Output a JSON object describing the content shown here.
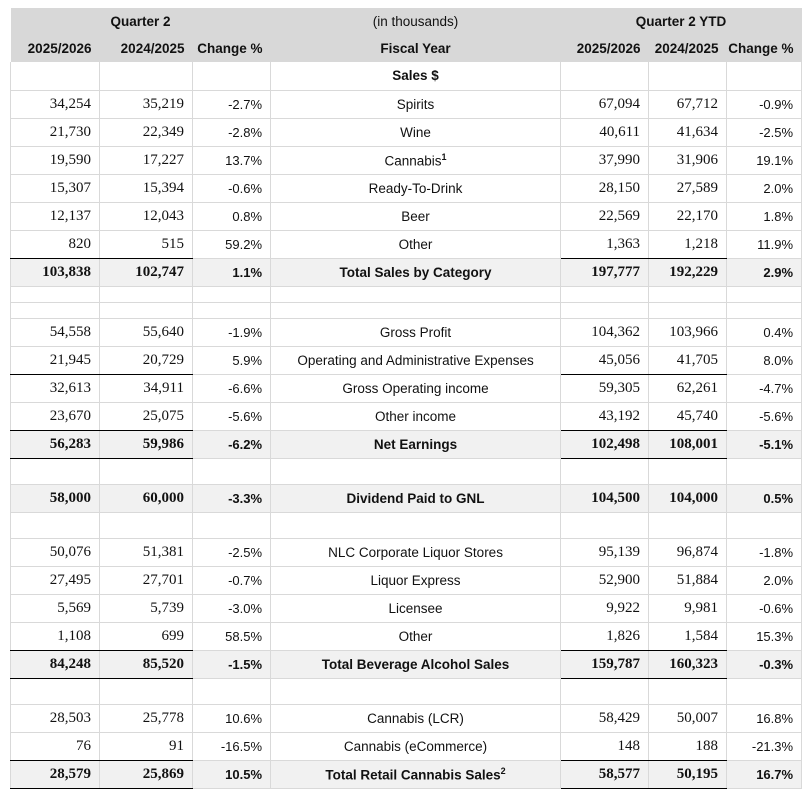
{
  "colors": {
    "header_bg": "#d8d8d8",
    "total_bg": "#f1f1f1",
    "grid": "#d9d9d9",
    "rule": "#000000"
  },
  "table": {
    "group_headers": {
      "q2": "Quarter 2",
      "center": "(in thousands)",
      "ytd": "Quarter 2 YTD"
    },
    "col_headers": [
      "2025/2026",
      "2024/2025",
      "Change %",
      "Fiscal Year",
      "2025/2026",
      "2024/2025",
      "Change %"
    ],
    "rows": [
      {
        "type": "section",
        "label": "Sales $"
      },
      {
        "type": "data",
        "label": "Spirits",
        "cells": [
          "34,254",
          "35,219",
          "-2.7%",
          "67,094",
          "67,712",
          "-0.9%"
        ]
      },
      {
        "type": "data",
        "label": "Wine",
        "cells": [
          "21,730",
          "22,349",
          "-2.8%",
          "40,611",
          "41,634",
          "-2.5%"
        ]
      },
      {
        "type": "data",
        "label": "Cannabis",
        "sup": "1",
        "cells": [
          "19,590",
          "17,227",
          "13.7%",
          "37,990",
          "31,906",
          "19.1%"
        ]
      },
      {
        "type": "data",
        "label": "Ready-To-Drink",
        "cells": [
          "15,307",
          "15,394",
          "-0.6%",
          "28,150",
          "27,589",
          "2.0%"
        ]
      },
      {
        "type": "data",
        "label": "Beer",
        "cells": [
          "12,137",
          "12,043",
          "0.8%",
          "22,569",
          "22,170",
          "1.8%"
        ]
      },
      {
        "type": "data",
        "label": "Other",
        "ul": true,
        "cells": [
          "820",
          "515",
          "59.2%",
          "1,363",
          "1,218",
          "11.9%"
        ]
      },
      {
        "type": "total",
        "label": "Total Sales by Category",
        "cells": [
          "103,838",
          "102,747",
          "1.1%",
          "197,777",
          "192,229",
          "2.9%"
        ]
      },
      {
        "type": "blank",
        "small": true
      },
      {
        "type": "blank",
        "small": true
      },
      {
        "type": "data",
        "label": "Gross Profit",
        "cells": [
          "54,558",
          "55,640",
          "-1.9%",
          "104,362",
          "103,966",
          "0.4%"
        ]
      },
      {
        "type": "data",
        "label": "Operating and Administrative Expenses",
        "ul": true,
        "cells": [
          "21,945",
          "20,729",
          "5.9%",
          "45,056",
          "41,705",
          "8.0%"
        ]
      },
      {
        "type": "data",
        "label": "Gross Operating income",
        "cells": [
          "32,613",
          "34,911",
          "-6.6%",
          "59,305",
          "62,261",
          "-4.7%"
        ]
      },
      {
        "type": "data",
        "label": "Other income",
        "ul": true,
        "cells": [
          "23,670",
          "25,075",
          "-5.6%",
          "43,192",
          "45,740",
          "-5.6%"
        ]
      },
      {
        "type": "total",
        "label": "Net Earnings",
        "ul_bottom": true,
        "cells": [
          "56,283",
          "59,986",
          "-6.2%",
          "102,498",
          "108,001",
          "-5.1%"
        ]
      },
      {
        "type": "blank"
      },
      {
        "type": "total",
        "label": "Dividend Paid to GNL",
        "cells": [
          "58,000",
          "60,000",
          "-3.3%",
          "104,500",
          "104,000",
          "0.5%"
        ]
      },
      {
        "type": "blank"
      },
      {
        "type": "data",
        "label": "NLC Corporate Liquor Stores",
        "cells": [
          "50,076",
          "51,381",
          "-2.5%",
          "95,139",
          "96,874",
          "-1.8%"
        ]
      },
      {
        "type": "data",
        "label": "Liquor Express",
        "cells": [
          "27,495",
          "27,701",
          "-0.7%",
          "52,900",
          "51,884",
          "2.0%"
        ]
      },
      {
        "type": "data",
        "label": "Licensee",
        "cells": [
          "5,569",
          "5,739",
          "-3.0%",
          "9,922",
          "9,981",
          "-0.6%"
        ]
      },
      {
        "type": "data",
        "label": "Other",
        "ul": true,
        "cells": [
          "1,108",
          "699",
          "58.5%",
          "1,826",
          "1,584",
          "15.3%"
        ]
      },
      {
        "type": "total",
        "label": "Total Beverage Alcohol Sales",
        "ul_bottom": true,
        "cells": [
          "84,248",
          "85,520",
          "-1.5%",
          "159,787",
          "160,323",
          "-0.3%"
        ]
      },
      {
        "type": "blank"
      },
      {
        "type": "data",
        "label": "Cannabis (LCR)",
        "cells": [
          "28,503",
          "25,778",
          "10.6%",
          "58,429",
          "50,007",
          "16.8%"
        ]
      },
      {
        "type": "data",
        "label": "Cannabis (eCommerce)",
        "ul": true,
        "cells": [
          "76",
          "91",
          "-16.5%",
          "148",
          "188",
          "-21.3%"
        ]
      },
      {
        "type": "total",
        "label": "Total Retail Cannabis Sales",
        "sup": "2",
        "ul_bottom": true,
        "cells": [
          "28,579",
          "25,869",
          "10.5%",
          "58,577",
          "50,195",
          "16.7%"
        ]
      }
    ]
  }
}
